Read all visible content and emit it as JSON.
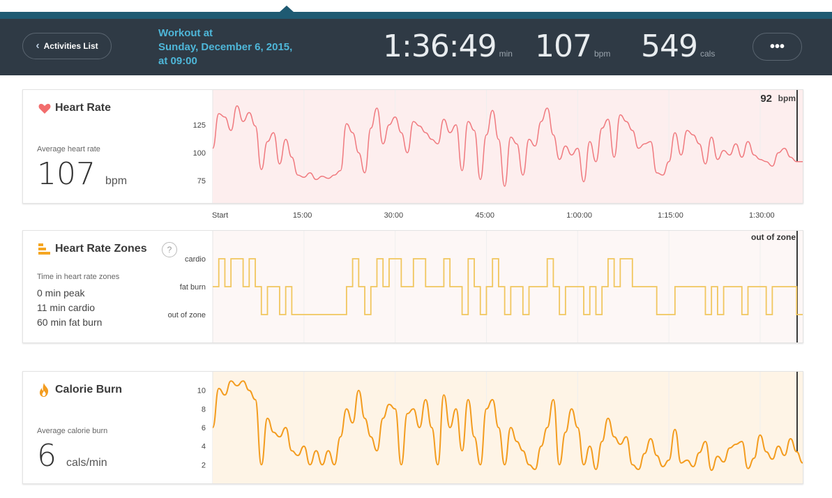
{
  "header": {
    "back_label": "Activities List",
    "title_line1": "Workout at",
    "title_line2": "Sunday, December 6, 2015,",
    "title_line3": "at 09:00",
    "duration": {
      "value": "1:36:49",
      "unit": "min"
    },
    "heart": {
      "value": "107",
      "unit": "bpm"
    },
    "calories": {
      "value": "549",
      "unit": "cals"
    },
    "more_label": "•••"
  },
  "heart_rate": {
    "title": "Heart Rate",
    "avg_label": "Average heart rate",
    "avg_value": "107",
    "avg_unit": "bpm",
    "current_value": "92",
    "current_unit": "bpm",
    "y_ticks": [
      "125",
      "100",
      "75"
    ]
  },
  "x_axis": {
    "ticks": [
      "Start",
      "15:00",
      "30:00",
      "45:00",
      "1:00:00",
      "1:15:00",
      "1:30:00"
    ]
  },
  "zones": {
    "title": "Heart Rate Zones",
    "help": "?",
    "subtitle": "Time in heart rate zones",
    "peak": "0 min peak",
    "cardio": "11 min cardio",
    "fatburn": "60 min fat burn",
    "current": "out of zone",
    "levels": [
      "cardio",
      "fat burn",
      "out of zone"
    ]
  },
  "calories": {
    "title": "Calorie Burn",
    "avg_label": "Average calorie burn",
    "avg_value": "6",
    "avg_unit": "cals/min",
    "y_ticks": [
      "10",
      "8",
      "6",
      "4",
      "2"
    ]
  },
  "colors": {
    "header_bg": "#2f3a45",
    "accent_blue": "#4eb6d8",
    "heart_line": "#f07a7f",
    "heart_fill": "#fdeeee",
    "zone_line": "#f1c65e",
    "calorie_line": "#f39c1f",
    "calorie_fill": "#fef4e6"
  },
  "chart_data": [
    {
      "type": "line",
      "title": "Heart Rate",
      "unit": "bpm",
      "x_unit": "minutes",
      "ylim": [
        55,
        150
      ],
      "x": [
        0,
        1,
        2,
        3,
        4,
        5,
        6,
        7,
        8,
        9,
        10,
        11,
        12,
        13,
        14,
        15,
        16,
        17,
        18,
        19,
        20,
        21,
        22,
        23,
        24,
        25,
        26,
        27,
        28,
        29,
        30,
        31,
        32,
        33,
        34,
        35,
        36,
        37,
        38,
        39,
        40,
        41,
        42,
        43,
        44,
        45,
        46,
        47,
        48,
        49,
        50,
        51,
        52,
        53,
        54,
        55,
        56,
        57,
        58,
        59,
        60,
        61,
        62,
        63,
        64,
        65,
        66,
        67,
        68,
        69,
        70,
        71,
        72,
        73,
        74,
        75,
        76,
        77,
        78,
        79,
        80,
        81,
        82,
        83,
        84,
        85,
        86,
        87,
        88,
        89,
        90,
        91,
        92,
        93,
        94,
        95,
        96,
        97
      ],
      "y": [
        104,
        135,
        132,
        120,
        142,
        128,
        136,
        124,
        85,
        110,
        118,
        90,
        112,
        96,
        80,
        78,
        82,
        76,
        79,
        77,
        80,
        84,
        126,
        118,
        100,
        82,
        122,
        140,
        108,
        125,
        132,
        118,
        100,
        128,
        124,
        118,
        112,
        108,
        130,
        118,
        125,
        84,
        128,
        120,
        76,
        116,
        138,
        112,
        70,
        114,
        108,
        80,
        112,
        106,
        128,
        140,
        116,
        94,
        106,
        98,
        104,
        74,
        110,
        92,
        122,
        130,
        96,
        134,
        128,
        120,
        104,
        108,
        110,
        82,
        80,
        92,
        118,
        98,
        120,
        116,
        108,
        90,
        114,
        94,
        102,
        98,
        108,
        96,
        110,
        98,
        94,
        92,
        88,
        100,
        104,
        96,
        92,
        92
      ]
    },
    {
      "type": "line",
      "title": "Heart Rate Zones",
      "x_unit": "minutes",
      "categories": [
        "out of zone",
        "fat burn",
        "cardio"
      ],
      "x": [
        0,
        1,
        2,
        3,
        4,
        5,
        6,
        7,
        8,
        9,
        10,
        11,
        12,
        13,
        14,
        15,
        16,
        17,
        18,
        19,
        20,
        21,
        22,
        23,
        24,
        25,
        26,
        27,
        28,
        29,
        30,
        31,
        32,
        33,
        34,
        35,
        36,
        37,
        38,
        39,
        40,
        41,
        42,
        43,
        44,
        45,
        46,
        47,
        48,
        49,
        50,
        51,
        52,
        53,
        54,
        55,
        56,
        57,
        58,
        59,
        60,
        61,
        62,
        63,
        64,
        65,
        66,
        67,
        68,
        69,
        70,
        71,
        72,
        73,
        74,
        75,
        76,
        77,
        78,
        79,
        80,
        81,
        82,
        83,
        84,
        85,
        86,
        87,
        88,
        89,
        90,
        91,
        92,
        93,
        94,
        95,
        96,
        97
      ],
      "y": [
        1,
        2,
        1,
        2,
        2,
        1,
        2,
        1,
        0,
        1,
        1,
        0,
        1,
        0,
        0,
        0,
        0,
        0,
        0,
        0,
        0,
        0,
        1,
        2,
        1,
        0,
        1,
        2,
        1,
        2,
        2,
        1,
        1,
        2,
        2,
        1,
        1,
        1,
        2,
        1,
        1,
        0,
        2,
        1,
        0,
        1,
        2,
        1,
        0,
        1,
        1,
        0,
        1,
        1,
        1,
        2,
        1,
        0,
        1,
        1,
        1,
        0,
        1,
        0,
        1,
        2,
        1,
        2,
        2,
        1,
        1,
        1,
        1,
        0,
        0,
        0,
        1,
        1,
        1,
        1,
        1,
        0,
        1,
        0,
        1,
        1,
        1,
        0,
        1,
        1,
        1,
        0,
        1,
        1,
        1,
        1,
        0,
        0
      ]
    },
    {
      "type": "area",
      "title": "Calorie Burn",
      "unit": "cals/min",
      "x_unit": "minutes",
      "ylim": [
        0,
        12
      ],
      "x": [
        0,
        1,
        2,
        3,
        4,
        5,
        6,
        7,
        8,
        9,
        10,
        11,
        12,
        13,
        14,
        15,
        16,
        17,
        18,
        19,
        20,
        21,
        22,
        23,
        24,
        25,
        26,
        27,
        28,
        29,
        30,
        31,
        32,
        33,
        34,
        35,
        36,
        37,
        38,
        39,
        40,
        41,
        42,
        43,
        44,
        45,
        46,
        47,
        48,
        49,
        50,
        51,
        52,
        53,
        54,
        55,
        56,
        57,
        58,
        59,
        60,
        61,
        62,
        63,
        64,
        65,
        66,
        67,
        68,
        69,
        70,
        71,
        72,
        73,
        74,
        75,
        76,
        77,
        78,
        79,
        80,
        81,
        82,
        83,
        84,
        85,
        86,
        87,
        88,
        89,
        90,
        91,
        92,
        93,
        94,
        95,
        96,
        97
      ],
      "y": [
        6,
        10.2,
        9.5,
        11,
        10.5,
        11,
        10,
        9,
        2,
        7,
        5.5,
        5,
        6,
        3.5,
        3,
        4,
        2,
        3.5,
        2,
        3.5,
        2,
        5,
        8,
        6.5,
        10,
        7,
        5,
        3.5,
        7,
        8.5,
        8,
        2,
        7.5,
        8,
        6,
        9,
        6,
        2,
        9.5,
        6,
        8,
        3.5,
        9,
        5,
        2,
        8,
        9,
        6,
        2,
        6,
        4.5,
        3.5,
        2,
        1.5,
        4,
        6,
        9,
        2,
        5.5,
        8,
        6,
        2,
        4,
        1.5,
        4.5,
        7,
        5,
        4.2,
        5,
        2,
        1.5,
        3.2,
        4.8,
        3,
        1.8,
        2.5,
        5.8,
        2.2,
        2.5,
        1.8,
        3.3,
        4.5,
        1.4,
        2.9,
        2.3,
        3.8,
        4.2,
        4.5,
        1.6,
        2.7,
        5.2,
        3.4,
        2.6,
        4,
        3,
        4.8,
        3.4,
        2.2
      ]
    }
  ]
}
